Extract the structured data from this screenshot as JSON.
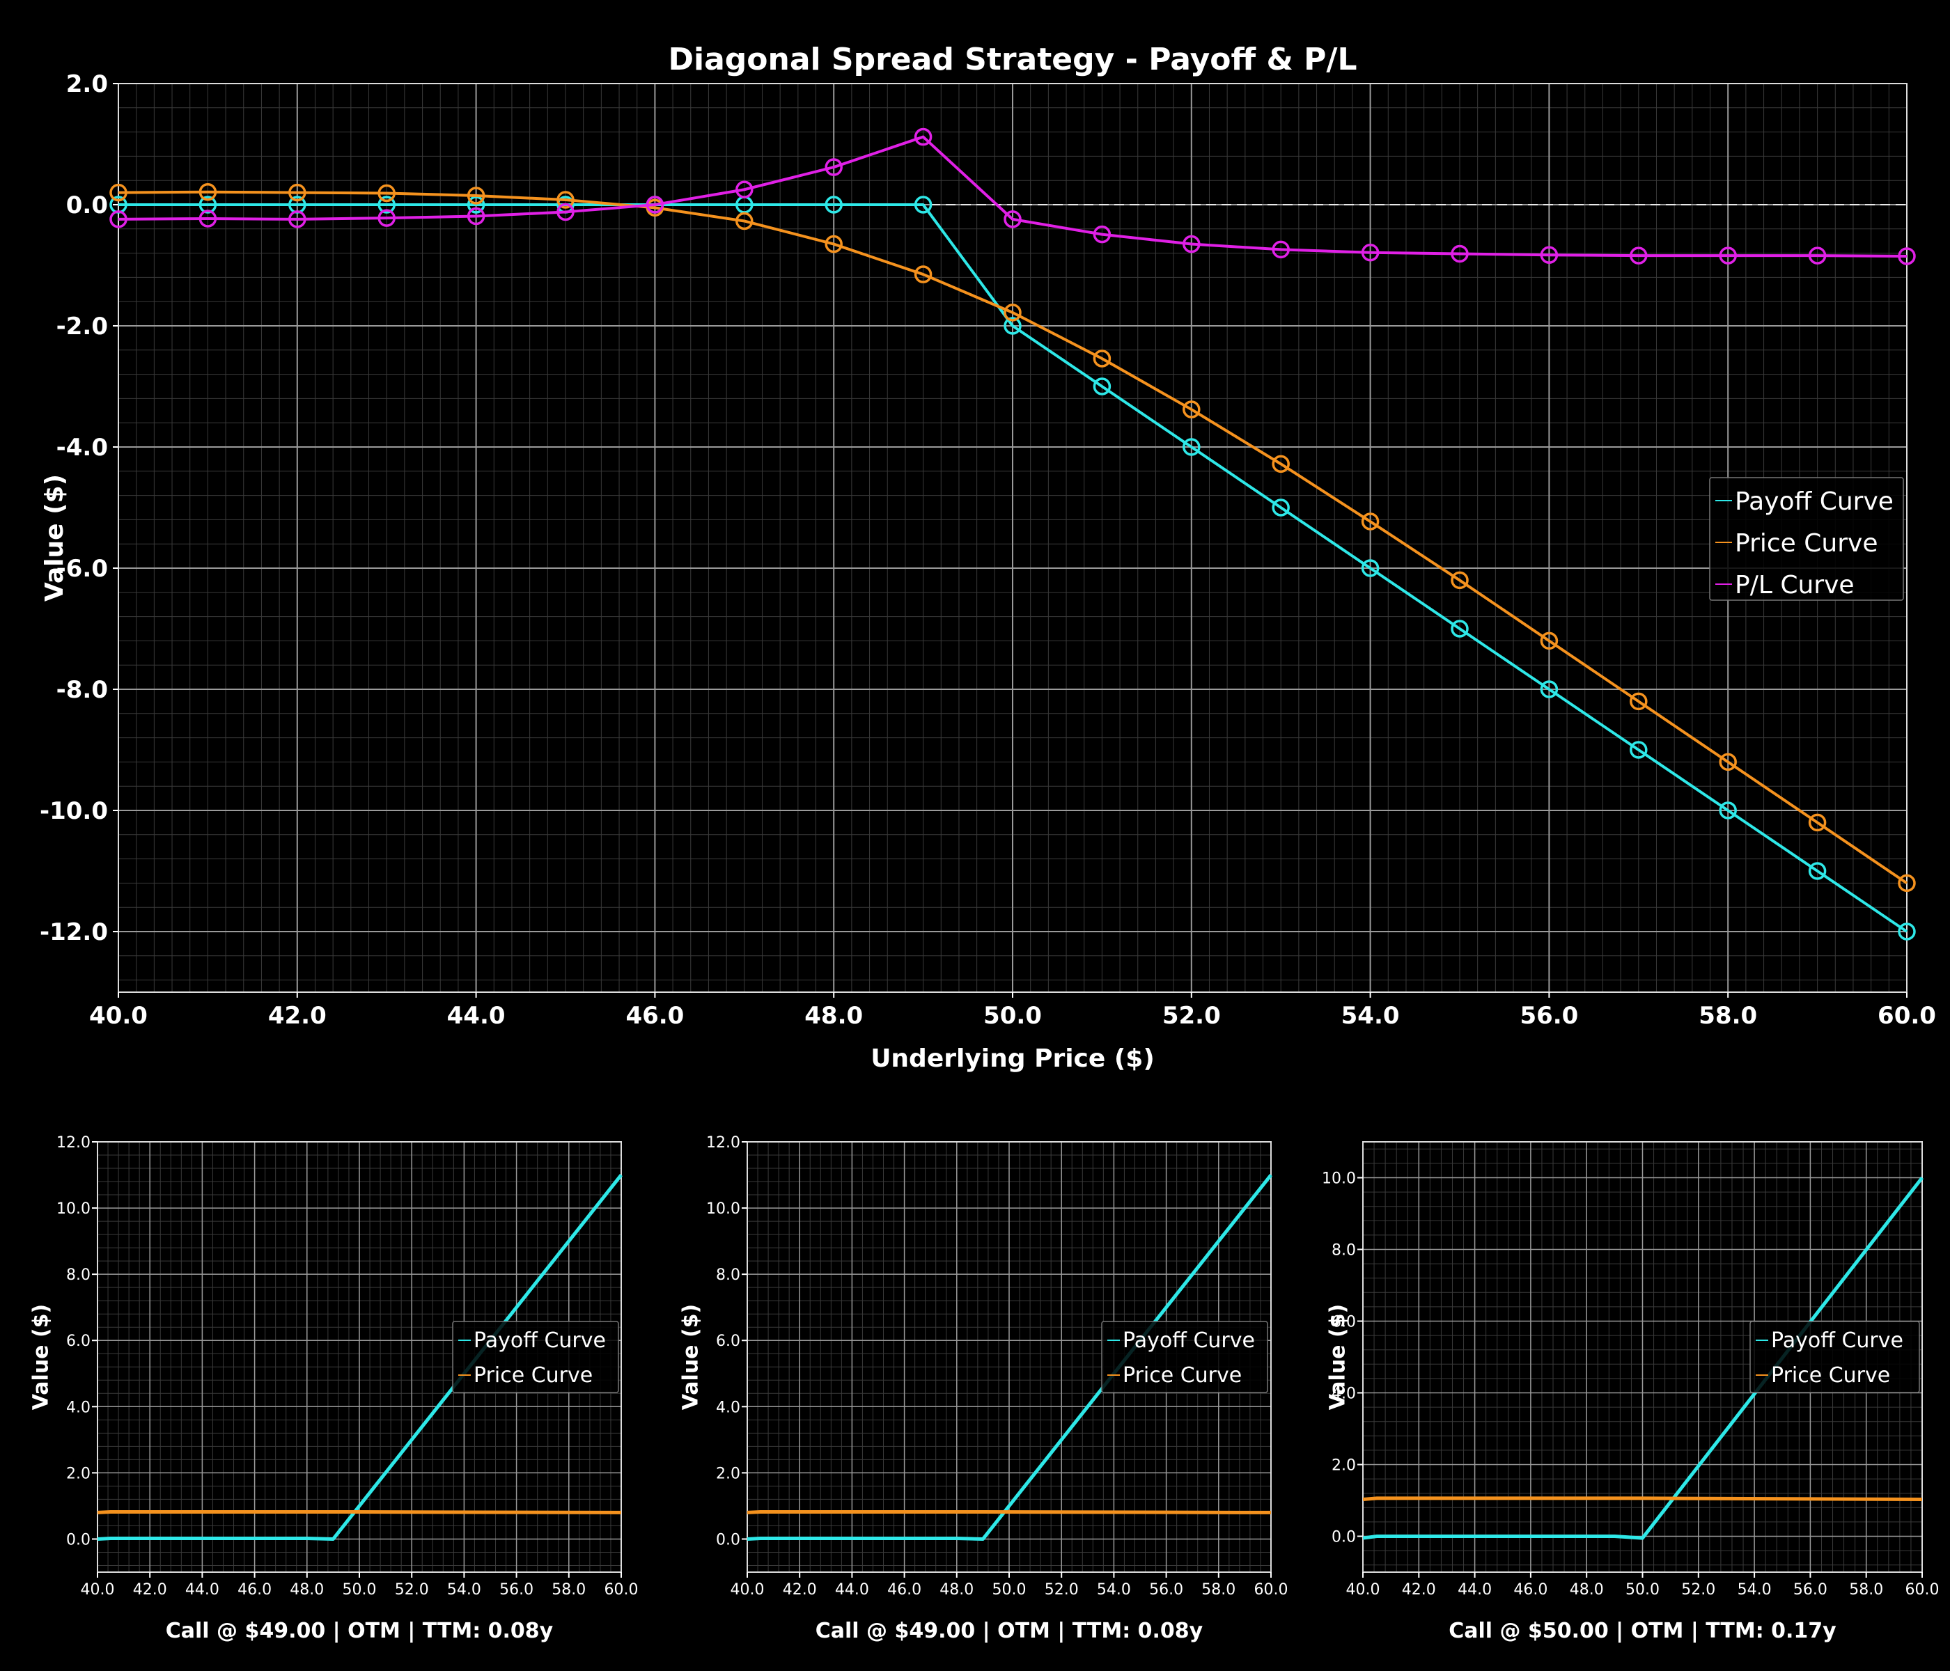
{
  "chart_data": [
    {
      "type": "line",
      "title": "Diagonal Spread Strategy - Payoff & P/L",
      "xlabel": "Underlying Price ($)",
      "ylabel": "Value ($)",
      "xlim": [
        40,
        60
      ],
      "ylim": [
        -13,
        2
      ],
      "x_ticks": [
        "40.0",
        "42.0",
        "44.0",
        "46.0",
        "48.0",
        "50.0",
        "52.0",
        "54.0",
        "56.0",
        "58.0",
        "60.0"
      ],
      "y_ticks": [
        "2.0",
        "0.0",
        "-2.0",
        "-4.0",
        "-6.0",
        "-8.0",
        "-10.0",
        "-12.0"
      ],
      "grid": true,
      "zero_line": true,
      "legend_position": "center-right",
      "x": [
        40,
        41,
        42,
        43,
        44,
        45,
        46,
        47,
        48,
        49,
        50,
        51,
        52,
        53,
        54,
        55,
        56,
        57,
        58,
        59,
        60
      ],
      "series": [
        {
          "name": "Payoff Curve",
          "color": "#2ee8e8",
          "values": [
            0,
            0,
            0,
            0,
            0,
            0,
            0,
            0,
            0,
            0,
            -2,
            -3,
            -4,
            -5,
            -6,
            -7,
            -8,
            -9,
            -10,
            -11,
            -12
          ]
        },
        {
          "name": "Price Curve",
          "color": "#f5921e",
          "values": [
            0.2,
            0.21,
            0.2,
            0.19,
            0.15,
            0.08,
            -0.05,
            -0.27,
            -0.65,
            -1.15,
            -1.78,
            -2.54,
            -3.38,
            -4.28,
            -5.23,
            -6.2,
            -7.2,
            -8.2,
            -9.2,
            -10.2,
            -11.2
          ]
        },
        {
          "name": "P/L Curve",
          "color": "#e020e6",
          "values": [
            -0.24,
            -0.23,
            -0.24,
            -0.22,
            -0.19,
            -0.12,
            0,
            0.25,
            0.62,
            1.12,
            -0.24,
            -0.49,
            -0.65,
            -0.74,
            -0.79,
            -0.81,
            -0.83,
            -0.84,
            -0.84,
            -0.84,
            -0.85
          ]
        }
      ]
    },
    {
      "type": "line",
      "title": "Call @ $49.00 | OTM | TTM: 0.08y",
      "xlabel": "Call @ $49.00 | OTM | TTM: 0.08y",
      "ylabel": "Value ($)",
      "xlim": [
        40,
        60
      ],
      "ylim": [
        -1,
        12
      ],
      "x_ticks": [
        "40.0",
        "42.0",
        "44.0",
        "46.0",
        "48.0",
        "50.0",
        "52.0",
        "54.0",
        "56.0",
        "58.0",
        "60.0"
      ],
      "y_ticks": [
        "0.0",
        "2.0",
        "4.0",
        "6.0",
        "8.0",
        "10.0",
        "12.0"
      ],
      "grid": true,
      "legend_position": "center-right",
      "x": [
        40,
        40.5,
        41,
        48,
        49,
        60
      ],
      "series": [
        {
          "name": "Payoff Curve",
          "color": "#2ee8e8",
          "values": [
            0,
            0.02,
            0.02,
            0.02,
            0,
            11
          ]
        },
        {
          "name": "Price Curve",
          "color": "#f5921e",
          "values": [
            0.8,
            0.82,
            0.82,
            0.82,
            0.82,
            0.8
          ]
        }
      ]
    },
    {
      "type": "line",
      "title": "Call @ $49.00 | OTM | TTM: 0.08y",
      "xlabel": "Call @ $49.00 | OTM | TTM: 0.08y",
      "ylabel": "Value ($)",
      "xlim": [
        40,
        60
      ],
      "ylim": [
        -1,
        12
      ],
      "x_ticks": [
        "40.0",
        "42.0",
        "44.0",
        "46.0",
        "48.0",
        "50.0",
        "52.0",
        "54.0",
        "56.0",
        "58.0",
        "60.0"
      ],
      "y_ticks": [
        "0.0",
        "2.0",
        "4.0",
        "6.0",
        "8.0",
        "10.0",
        "12.0"
      ],
      "grid": true,
      "legend_position": "center-right",
      "x": [
        40,
        40.5,
        41,
        48,
        49,
        60
      ],
      "series": [
        {
          "name": "Payoff Curve",
          "color": "#2ee8e8",
          "values": [
            0,
            0.02,
            0.02,
            0.02,
            0,
            11
          ]
        },
        {
          "name": "Price Curve",
          "color": "#f5921e",
          "values": [
            0.8,
            0.82,
            0.82,
            0.82,
            0.82,
            0.8
          ]
        }
      ]
    },
    {
      "type": "line",
      "title": "Call @ $50.00 | OTM | TTM: 0.17y",
      "xlabel": "Call @ $50.00 | OTM | TTM: 0.17y",
      "ylabel": "Value ($)",
      "xlim": [
        40,
        60
      ],
      "ylim": [
        -1,
        11
      ],
      "x_ticks": [
        "40.0",
        "42.0",
        "44.0",
        "46.0",
        "48.0",
        "50.0",
        "52.0",
        "54.0",
        "56.0",
        "58.0",
        "60.0"
      ],
      "y_ticks": [
        "0.0",
        "2.0",
        "4.0",
        "6.0",
        "8.0",
        "10.0"
      ],
      "grid": true,
      "legend_position": "center-right",
      "x": [
        40,
        40.5,
        41,
        49,
        50,
        60
      ],
      "series": [
        {
          "name": "Payoff Curve",
          "color": "#2ee8e8",
          "values": [
            -0.05,
            0,
            0,
            0,
            -0.05,
            10
          ]
        },
        {
          "name": "Price Curve",
          "color": "#f5921e",
          "values": [
            1.03,
            1.06,
            1.06,
            1.06,
            1.06,
            1.03
          ]
        }
      ]
    }
  ]
}
